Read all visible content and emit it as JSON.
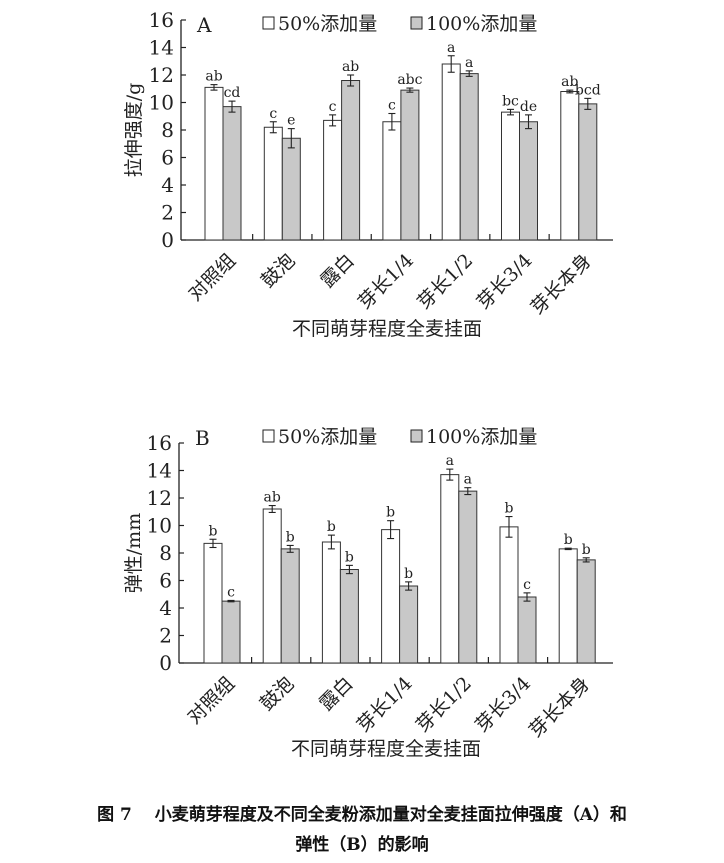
{
  "chart_data": [
    {
      "type": "bar",
      "panel_label": "A",
      "title": "",
      "xlabel": "不同萌芽程度全麦挂面",
      "ylabel": "拉伸强度/g",
      "ylim": [
        0,
        16
      ],
      "yticks": [
        0,
        2,
        4,
        6,
        8,
        10,
        12,
        14,
        16
      ],
      "categories": [
        "对照组",
        "鼓泡",
        "露白",
        "芽长1/4",
        "芽长1/2",
        "芽长3/4",
        "芽长本身"
      ],
      "legend_position": "top",
      "series": [
        {
          "name": "50%添加量",
          "color": "#ffffff",
          "values": [
            11.1,
            8.2,
            8.7,
            8.6,
            12.8,
            9.3,
            10.8
          ],
          "errors": [
            0.2,
            0.4,
            0.4,
            0.6,
            0.6,
            0.2,
            0.1
          ],
          "labels": [
            "ab",
            "c",
            "c",
            "c",
            "a",
            "bc",
            "ab"
          ]
        },
        {
          "name": "100%添加量",
          "color": "#c8c8c8",
          "values": [
            9.7,
            7.4,
            11.6,
            10.9,
            12.1,
            8.6,
            9.9
          ],
          "errors": [
            0.4,
            0.7,
            0.4,
            0.15,
            0.2,
            0.5,
            0.4
          ],
          "labels": [
            "cd",
            "e",
            "ab",
            "abc",
            "a",
            "de",
            "bcd"
          ]
        }
      ]
    },
    {
      "type": "bar",
      "panel_label": "B",
      "title": "",
      "xlabel": "不同萌芽程度全麦挂面",
      "ylabel": "弹性/mm",
      "ylim": [
        0,
        16
      ],
      "yticks": [
        0,
        2,
        4,
        6,
        8,
        10,
        12,
        14,
        16
      ],
      "categories": [
        "对照组",
        "鼓泡",
        "露白",
        "芽长1/4",
        "芽长1/2",
        "芽长3/4",
        "芽长本身"
      ],
      "legend_position": "top",
      "series": [
        {
          "name": "50%添加量",
          "color": "#ffffff",
          "values": [
            8.7,
            11.2,
            8.8,
            9.7,
            13.7,
            9.9,
            8.3
          ],
          "errors": [
            0.3,
            0.25,
            0.5,
            0.65,
            0.4,
            0.75,
            0.05
          ],
          "labels": [
            "b",
            "ab",
            "b",
            "b",
            "a",
            "b",
            "b"
          ]
        },
        {
          "name": "100%添加量",
          "color": "#c8c8c8",
          "values": [
            4.5,
            8.3,
            6.8,
            5.6,
            12.5,
            4.8,
            7.5
          ],
          "errors": [
            0.05,
            0.25,
            0.3,
            0.3,
            0.25,
            0.3,
            0.15
          ],
          "labels": [
            "c",
            "b",
            "b",
            "b",
            "a",
            "c",
            "b"
          ]
        }
      ]
    }
  ],
  "caption": {
    "line1": "图 7　 小麦萌芽程度及不同全麦粉添加量对全麦挂面拉伸强度（A）和",
    "line2": "弹性（B）的影响"
  }
}
